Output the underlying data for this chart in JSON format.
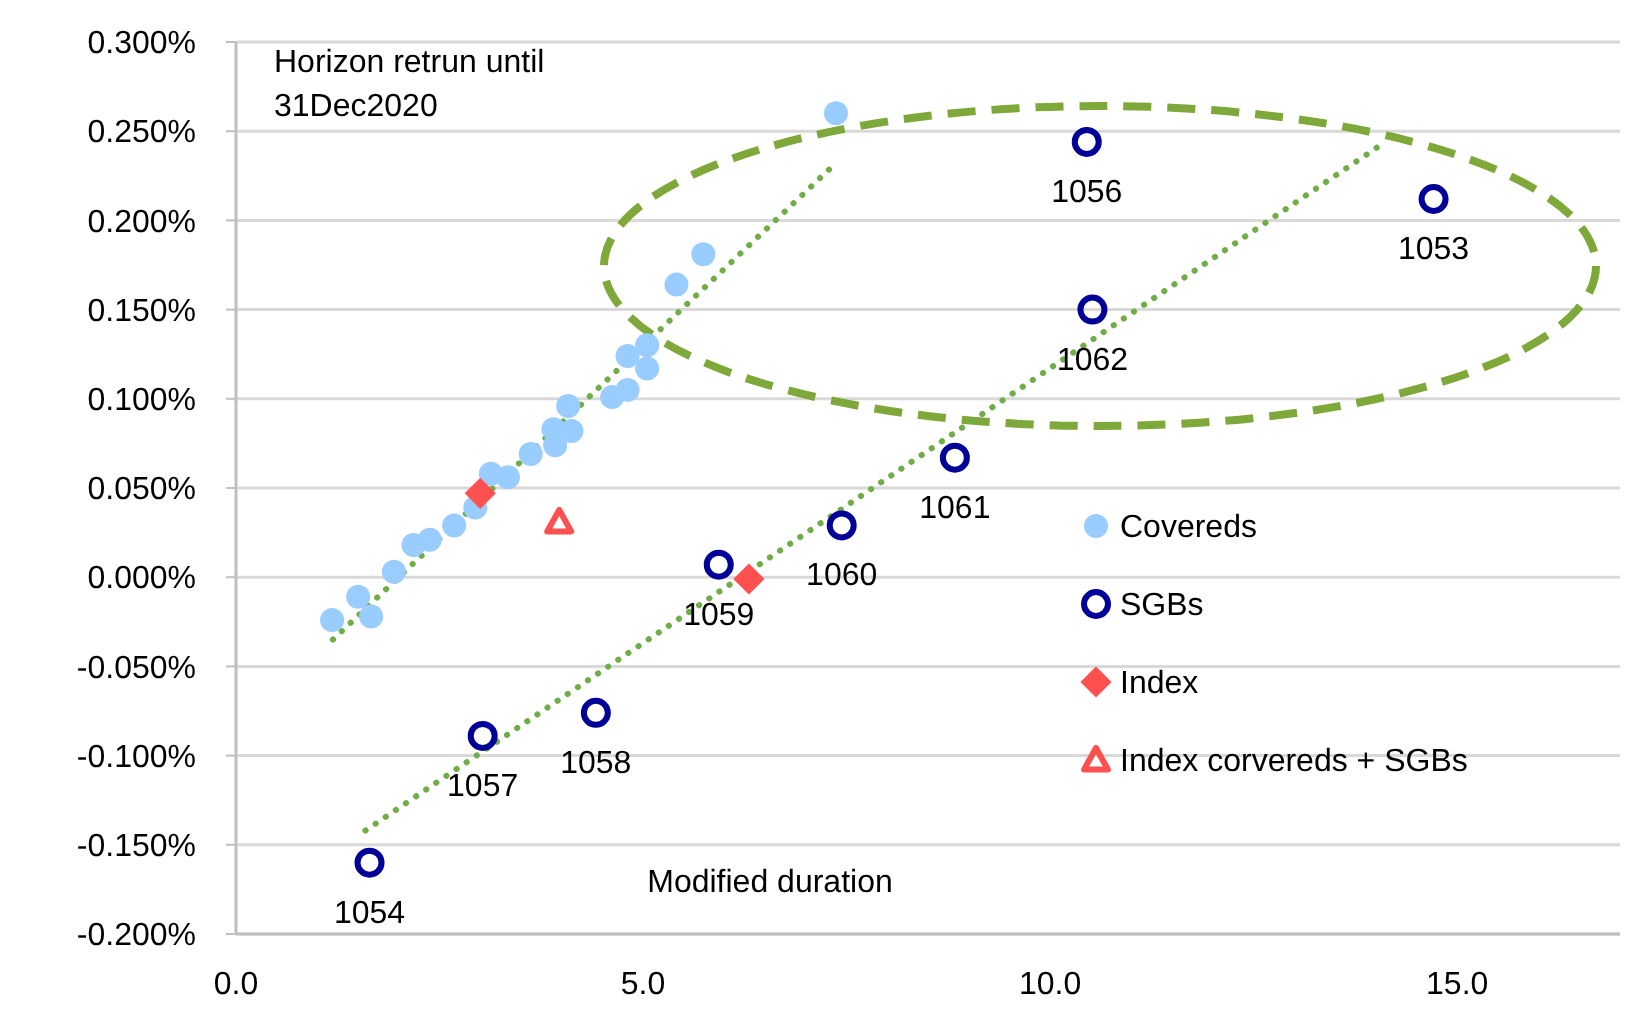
{
  "chart_data": {
    "type": "scatter",
    "xlabel": "Modified duration",
    "xlim": [
      0,
      17
    ],
    "ylim": [
      -0.2,
      0.3
    ],
    "xticks": [
      {
        "value": 0,
        "label": "0.0"
      },
      {
        "value": 5,
        "label": "5.0"
      },
      {
        "value": 10,
        "label": "10.0"
      },
      {
        "value": 15,
        "label": "15.0"
      }
    ],
    "yticks": [
      {
        "value": -0.2,
        "label": "-0.200%"
      },
      {
        "value": -0.15,
        "label": "-0.150%"
      },
      {
        "value": -0.1,
        "label": "-0.100%"
      },
      {
        "value": -0.05,
        "label": "-0.050%"
      },
      {
        "value": 0,
        "label": "0.000%"
      },
      {
        "value": 0.05,
        "label": "0.050%"
      },
      {
        "value": 0.1,
        "label": "0.100%"
      },
      {
        "value": 0.15,
        "label": "0.150%"
      },
      {
        "value": 0.2,
        "label": "0.200%"
      },
      {
        "value": 0.25,
        "label": "0.250%"
      },
      {
        "value": 0.3,
        "label": "0.300%"
      }
    ],
    "grid": "y",
    "legend": "right",
    "annotations": [
      "Horizon retrun until\n31Dec2020",
      {
        "text": "1054",
        "x": 1.64,
        "y": -0.16
      },
      {
        "text": "1057",
        "x": 3.03,
        "y": -0.089
      },
      {
        "text": "1058",
        "x": 4.42,
        "y": -0.076
      },
      {
        "text": "1059",
        "x": 5.93,
        "y": 0.007
      },
      {
        "text": "1060",
        "x": 7.44,
        "y": 0.029
      },
      {
        "text": "1061",
        "x": 8.83,
        "y": 0.067
      },
      {
        "text": "1062",
        "x": 10.52,
        "y": 0.15
      },
      {
        "text": "1056",
        "x": 10.45,
        "y": 0.244
      },
      {
        "text": "1053",
        "x": 14.71,
        "y": 0.212
      }
    ],
    "series": [
      {
        "type": "line",
        "color": "#70ad47",
        "line_style": "dotted",
        "marker": "none",
        "x": [
          1.19,
          7.32
        ],
        "values": [
          -0.035,
          0.23
        ]
      },
      {
        "type": "line",
        "color": "#70ad47",
        "line_style": "dotted",
        "marker": "none",
        "x": [
          1.59,
          14.02
        ],
        "values": [
          -0.142,
          0.241
        ]
      },
      {
        "name": "Covereds",
        "marker": "circle",
        "color": "#99ccff",
        "x": [
          1.18,
          1.5,
          1.66,
          1.94,
          2.18,
          2.38,
          2.68,
          2.94,
          3.13,
          3.34,
          3.62,
          3.9,
          3.92,
          4.08,
          4.12,
          4.62,
          4.81,
          4.81,
          5.05,
          5.05,
          5.41,
          5.74,
          7.37
        ],
        "values": [
          -0.024,
          -0.011,
          -0.022,
          0.003,
          0.018,
          0.021,
          0.029,
          0.039,
          0.058,
          0.056,
          0.069,
          0.083,
          0.074,
          0.096,
          0.082,
          0.101,
          0.105,
          0.124,
          0.13,
          0.117,
          0.164,
          0.181,
          0.26
        ]
      },
      {
        "name": "SGBs",
        "marker": "circle",
        "color": "#000099",
        "x": [
          1.64,
          3.03,
          4.42,
          5.93,
          7.44,
          8.83,
          10.52,
          10.45,
          14.71
        ],
        "values": [
          -0.16,
          -0.089,
          -0.076,
          0.007,
          0.029,
          0.067,
          0.15,
          0.244,
          0.212
        ]
      },
      {
        "name": "Index",
        "marker": "diamond",
        "color": "#ff5050",
        "x": [
          3.0,
          6.3
        ],
        "values": [
          0.047,
          -0.001
        ]
      },
      {
        "name": "Index corvereds + SGBs",
        "marker": "triangle",
        "color": "#ff5050",
        "x": [
          3.97
        ],
        "values": [
          0.031
        ]
      }
    ]
  }
}
